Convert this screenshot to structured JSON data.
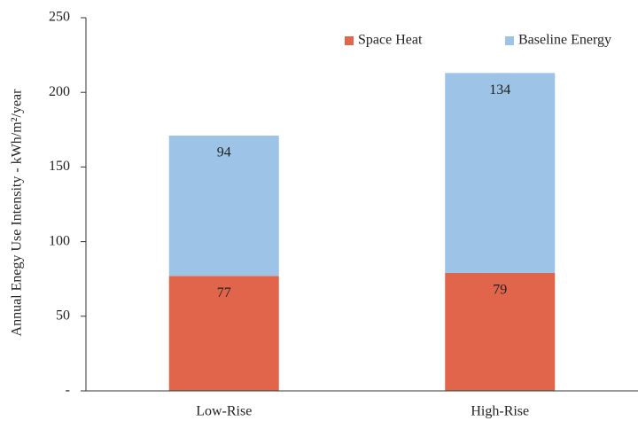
{
  "chart_data": {
    "type": "stacked_bar",
    "y_label": "Annual Enegy Use Intensity - kWh/m²/year",
    "categories": [
      "Low-Rise",
      "High-Rise"
    ],
    "series": [
      {
        "name": "Space Heat",
        "color": "#e0654b",
        "values": [
          77,
          79
        ]
      },
      {
        "name": "Baseline Energy",
        "color": "#9dc3e6",
        "values": [
          94,
          134
        ]
      }
    ],
    "ylim": [
      0,
      250
    ],
    "yticks": [
      {
        "value": 0,
        "label": "-"
      },
      50,
      100,
      150,
      200,
      250
    ],
    "legend": "top-right"
  }
}
